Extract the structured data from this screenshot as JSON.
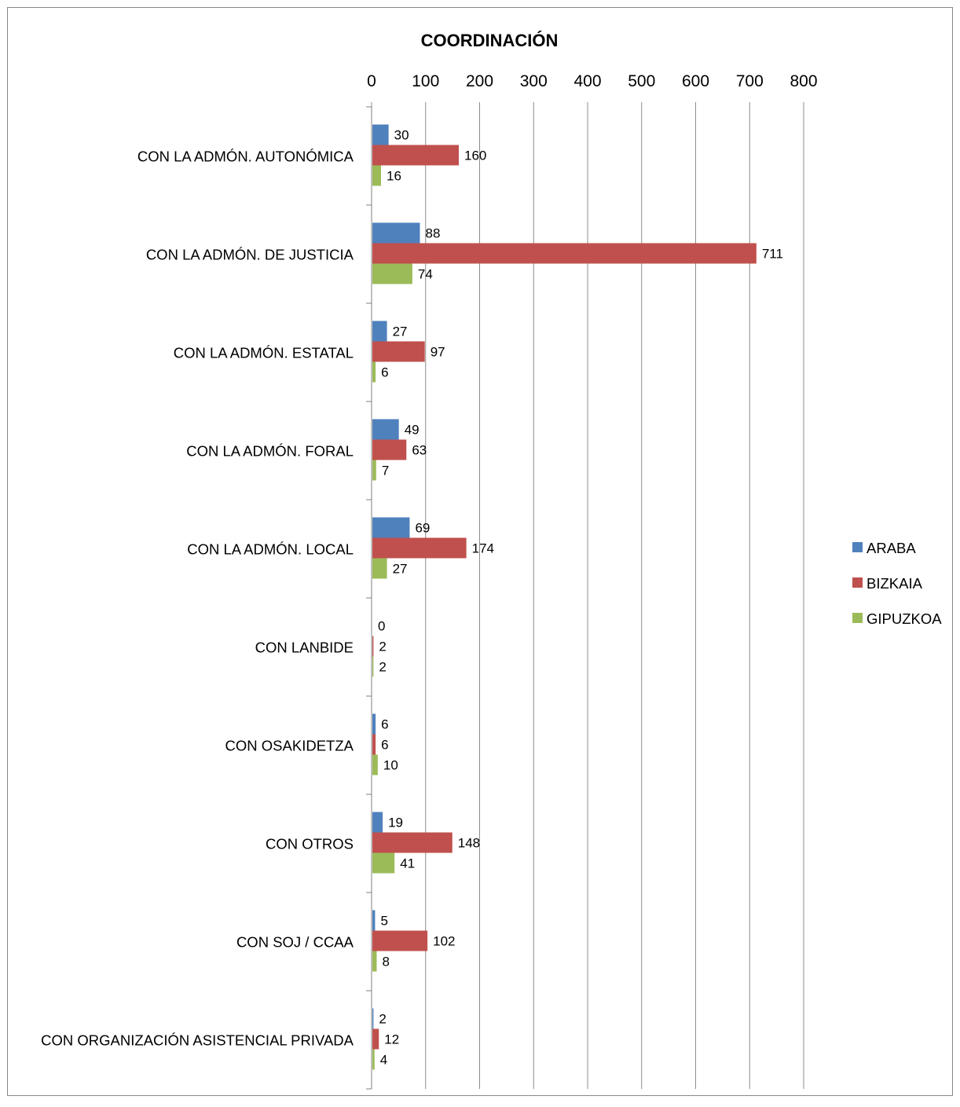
{
  "chart_data": {
    "type": "bar",
    "orientation": "horizontal",
    "title": "COORDINACIÓN",
    "xlabel": "",
    "ylabel": "",
    "xlim": [
      0,
      800
    ],
    "x_ticks": [
      "0",
      "100",
      "200",
      "300",
      "400",
      "500",
      "600",
      "700",
      "800"
    ],
    "x_axis_position": "top",
    "grid": true,
    "legend_position": "right",
    "categories": [
      "CON LA ADMÓN. AUTONÓMICA",
      "CON LA ADMÓN. DE JUSTICIA",
      "CON LA ADMÓN. ESTATAL",
      "CON LA ADMÓN. FORAL",
      "CON LA ADMÓN. LOCAL",
      "CON LANBIDE",
      "CON OSAKIDETZA",
      "CON OTROS",
      "CON SOJ / CCAA",
      "CON ORGANIZACIÓN ASISTENCIAL PRIVADA"
    ],
    "series": [
      {
        "name": "ARABA",
        "color": "#4F81BD",
        "values": [
          30,
          88,
          27,
          49,
          69,
          0,
          6,
          19,
          5,
          2
        ]
      },
      {
        "name": "BIZKAIA",
        "color": "#C0504D",
        "values": [
          160,
          711,
          97,
          63,
          174,
          2,
          6,
          148,
          102,
          12
        ]
      },
      {
        "name": "GIPUZKOA",
        "color": "#9BBB59",
        "values": [
          16,
          74,
          6,
          7,
          27,
          2,
          10,
          41,
          8,
          4
        ]
      }
    ]
  }
}
